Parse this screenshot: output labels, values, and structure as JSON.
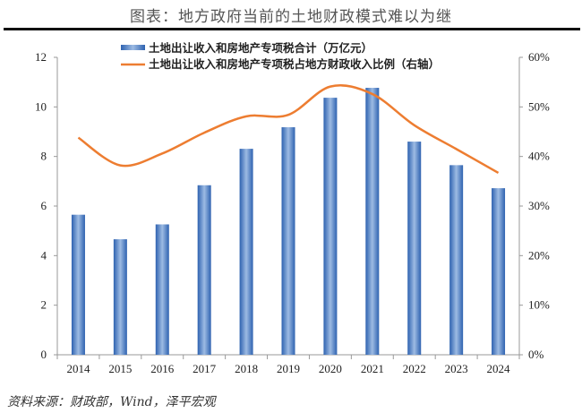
{
  "title": "图表：地方政府当前的土地财政模式难以为继",
  "source": "资料来源：财政部，Wind，泽平宏观",
  "chart_data": {
    "type": "bar+line",
    "categories": [
      "2014",
      "2015",
      "2016",
      "2017",
      "2018",
      "2019",
      "2020",
      "2021",
      "2022",
      "2023",
      "2024"
    ],
    "series": [
      {
        "name": "土地出让收入和房地产专项税合计（万亿元）",
        "type": "bar",
        "axis": "left",
        "color": "#3f74c0",
        "values": [
          5.65,
          4.66,
          5.26,
          6.84,
          8.31,
          9.18,
          10.37,
          10.77,
          8.6,
          7.65,
          6.72
        ]
      },
      {
        "name": "土地出让收入和房地产专项税占地方财政收入比例（右轴）",
        "type": "line",
        "axis": "right",
        "color": "#ed7d31",
        "values": [
          43.8,
          38.2,
          40.6,
          44.8,
          48.1,
          48.4,
          54.1,
          52.6,
          46.3,
          41.5,
          36.7
        ]
      }
    ],
    "left_axis": {
      "range": [
        0,
        12
      ],
      "ticks": [
        "0",
        "2",
        "4",
        "6",
        "8",
        "10",
        "12"
      ]
    },
    "right_axis": {
      "range": [
        0,
        60
      ],
      "ticks": [
        "0%",
        "10%",
        "20%",
        "30%",
        "40%",
        "50%",
        "60%"
      ]
    },
    "legend_position": "top",
    "grid": false
  }
}
